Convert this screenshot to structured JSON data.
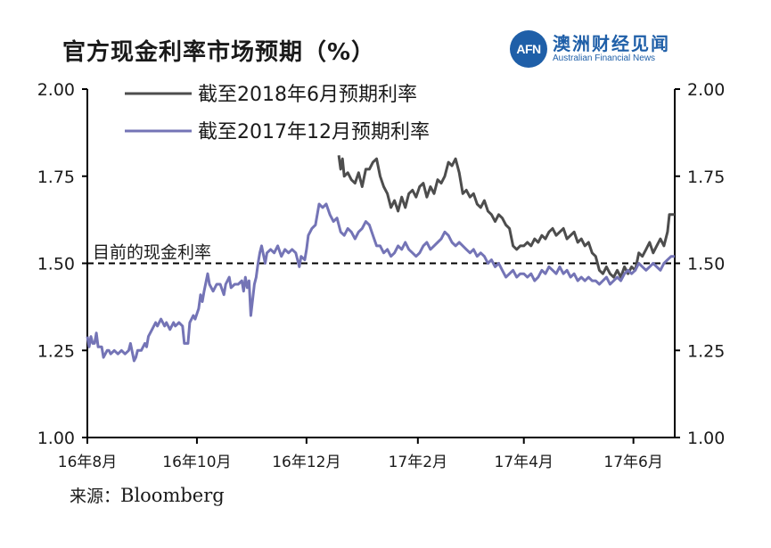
{
  "header": {
    "title": "官方现金利率市场预期（%）"
  },
  "logo": {
    "abbr": "AFN",
    "name_cn": "澳洲财经见闻",
    "name_en": "Australian Financial News"
  },
  "source": {
    "label": "来源：",
    "name": "Bloomberg"
  },
  "colors": {
    "series_2018": "#4d4d4d",
    "series_2017": "#7474b6",
    "axis": "#000000",
    "reference": "#000000"
  },
  "chart_data": {
    "type": "line",
    "ylim": [
      1.0,
      2.0
    ],
    "yticks": [
      "1.00",
      "1.25",
      "1.50",
      "1.75",
      "2.00"
    ],
    "xticks": [
      "16年8月",
      "16年10月",
      "16年12月",
      "17年2月",
      "17年4月",
      "17年6月"
    ],
    "x_unit": "days since 2016-08-01",
    "reference_line": {
      "value": 1.5,
      "label": "目前的现金利率"
    },
    "legend_position": "top-left",
    "series": [
      {
        "name": "截至2018年6月预期利率",
        "color": "#4d4d4d",
        "points": [
          [
            140,
            1.81
          ],
          [
            141,
            1.77
          ],
          [
            142,
            1.8
          ],
          [
            143,
            1.75
          ],
          [
            145,
            1.76
          ],
          [
            147,
            1.74
          ],
          [
            149,
            1.73
          ],
          [
            151,
            1.76
          ],
          [
            153,
            1.72
          ],
          [
            155,
            1.77
          ],
          [
            157,
            1.77
          ],
          [
            159,
            1.79
          ],
          [
            161,
            1.8
          ],
          [
            163,
            1.75
          ],
          [
            165,
            1.72
          ],
          [
            167,
            1.7
          ],
          [
            169,
            1.66
          ],
          [
            171,
            1.68
          ],
          [
            173,
            1.65
          ],
          [
            175,
            1.69
          ],
          [
            177,
            1.66
          ],
          [
            179,
            1.7
          ],
          [
            181,
            1.71
          ],
          [
            183,
            1.69
          ],
          [
            185,
            1.72
          ],
          [
            187,
            1.73
          ],
          [
            189,
            1.69
          ],
          [
            191,
            1.72
          ],
          [
            193,
            1.7
          ],
          [
            195,
            1.74
          ],
          [
            197,
            1.73
          ],
          [
            199,
            1.75
          ],
          [
            201,
            1.79
          ],
          [
            203,
            1.78
          ],
          [
            205,
            1.8
          ],
          [
            207,
            1.76
          ],
          [
            209,
            1.7
          ],
          [
            211,
            1.71
          ],
          [
            213,
            1.69
          ],
          [
            215,
            1.7
          ],
          [
            217,
            1.67
          ],
          [
            219,
            1.66
          ],
          [
            221,
            1.68
          ],
          [
            223,
            1.65
          ],
          [
            225,
            1.64
          ],
          [
            227,
            1.62
          ],
          [
            229,
            1.64
          ],
          [
            231,
            1.63
          ],
          [
            233,
            1.61
          ],
          [
            235,
            1.6
          ],
          [
            237,
            1.55
          ],
          [
            239,
            1.54
          ],
          [
            241,
            1.55
          ],
          [
            243,
            1.55
          ],
          [
            245,
            1.56
          ],
          [
            247,
            1.55
          ],
          [
            249,
            1.57
          ],
          [
            251,
            1.56
          ],
          [
            253,
            1.58
          ],
          [
            255,
            1.57
          ],
          [
            257,
            1.59
          ],
          [
            259,
            1.6
          ],
          [
            261,
            1.58
          ],
          [
            263,
            1.59
          ],
          [
            265,
            1.6
          ],
          [
            267,
            1.57
          ],
          [
            269,
            1.58
          ],
          [
            271,
            1.59
          ],
          [
            273,
            1.56
          ],
          [
            275,
            1.57
          ],
          [
            277,
            1.55
          ],
          [
            279,
            1.56
          ],
          [
            281,
            1.53
          ],
          [
            283,
            1.52
          ],
          [
            285,
            1.48
          ],
          [
            287,
            1.47
          ],
          [
            289,
            1.49
          ],
          [
            291,
            1.47
          ],
          [
            293,
            1.46
          ],
          [
            295,
            1.48
          ],
          [
            297,
            1.46
          ],
          [
            299,
            1.49
          ],
          [
            301,
            1.47
          ],
          [
            303,
            1.49
          ],
          [
            305,
            1.48
          ],
          [
            307,
            1.53
          ],
          [
            309,
            1.52
          ],
          [
            311,
            1.54
          ],
          [
            313,
            1.56
          ],
          [
            315,
            1.53
          ],
          [
            317,
            1.55
          ],
          [
            319,
            1.57
          ],
          [
            321,
            1.55
          ],
          [
            323,
            1.59
          ],
          [
            324,
            1.64
          ],
          [
            327,
            1.64
          ]
        ]
      },
      {
        "name": "截至2017年12月预期利率",
        "color": "#7474b6",
        "points": [
          [
            0,
            1.29
          ],
          [
            1,
            1.26
          ],
          [
            2,
            1.29
          ],
          [
            3,
            1.27
          ],
          [
            4,
            1.27
          ],
          [
            5,
            1.3
          ],
          [
            6,
            1.26
          ],
          [
            8,
            1.26
          ],
          [
            9,
            1.23
          ],
          [
            11,
            1.25
          ],
          [
            12,
            1.25
          ],
          [
            13,
            1.24
          ],
          [
            15,
            1.25
          ],
          [
            17,
            1.24
          ],
          [
            19,
            1.25
          ],
          [
            21,
            1.24
          ],
          [
            23,
            1.25
          ],
          [
            24,
            1.27
          ],
          [
            26,
            1.22
          ],
          [
            27,
            1.23
          ],
          [
            28,
            1.25
          ],
          [
            30,
            1.25
          ],
          [
            32,
            1.27
          ],
          [
            33,
            1.26
          ],
          [
            34,
            1.29
          ],
          [
            36,
            1.31
          ],
          [
            38,
            1.33
          ],
          [
            39,
            1.32
          ],
          [
            41,
            1.34
          ],
          [
            43,
            1.32
          ],
          [
            44,
            1.33
          ],
          [
            46,
            1.31
          ],
          [
            48,
            1.33
          ],
          [
            49,
            1.32
          ],
          [
            51,
            1.33
          ],
          [
            53,
            1.32
          ],
          [
            54,
            1.27
          ],
          [
            56,
            1.27
          ],
          [
            57,
            1.33
          ],
          [
            59,
            1.35
          ],
          [
            60,
            1.34
          ],
          [
            62,
            1.37
          ],
          [
            63,
            1.41
          ],
          [
            64,
            1.39
          ],
          [
            65,
            1.42
          ],
          [
            67,
            1.47
          ],
          [
            68,
            1.44
          ],
          [
            70,
            1.42
          ],
          [
            72,
            1.44
          ],
          [
            74,
            1.44
          ],
          [
            76,
            1.41
          ],
          [
            77,
            1.44
          ],
          [
            79,
            1.46
          ],
          [
            80,
            1.43
          ],
          [
            82,
            1.44
          ],
          [
            84,
            1.44
          ],
          [
            86,
            1.45
          ],
          [
            87,
            1.42
          ],
          [
            88,
            1.46
          ],
          [
            89,
            1.43
          ],
          [
            90,
            1.45
          ],
          [
            91,
            1.35
          ],
          [
            93,
            1.44
          ],
          [
            94,
            1.46
          ],
          [
            95,
            1.5
          ],
          [
            96,
            1.53
          ],
          [
            97,
            1.55
          ],
          [
            99,
            1.5
          ],
          [
            100,
            1.53
          ],
          [
            102,
            1.54
          ],
          [
            104,
            1.53
          ],
          [
            106,
            1.55
          ],
          [
            108,
            1.52
          ],
          [
            110,
            1.54
          ],
          [
            112,
            1.53
          ],
          [
            114,
            1.54
          ],
          [
            116,
            1.53
          ],
          [
            118,
            1.49
          ],
          [
            119,
            1.52
          ],
          [
            121,
            1.51
          ],
          [
            122,
            1.54
          ],
          [
            123,
            1.58
          ],
          [
            125,
            1.6
          ],
          [
            127,
            1.61
          ],
          [
            129,
            1.67
          ],
          [
            131,
            1.66
          ],
          [
            133,
            1.67
          ],
          [
            135,
            1.64
          ],
          [
            137,
            1.62
          ],
          [
            139,
            1.63
          ],
          [
            141,
            1.59
          ],
          [
            143,
            1.58
          ],
          [
            145,
            1.6
          ],
          [
            147,
            1.59
          ],
          [
            149,
            1.57
          ],
          [
            151,
            1.59
          ],
          [
            153,
            1.6
          ],
          [
            155,
            1.62
          ],
          [
            157,
            1.61
          ],
          [
            159,
            1.58
          ],
          [
            161,
            1.55
          ],
          [
            163,
            1.55
          ],
          [
            165,
            1.53
          ],
          [
            167,
            1.54
          ],
          [
            169,
            1.52
          ],
          [
            171,
            1.53
          ],
          [
            173,
            1.55
          ],
          [
            175,
            1.54
          ],
          [
            177,
            1.56
          ],
          [
            179,
            1.54
          ],
          [
            181,
            1.53
          ],
          [
            183,
            1.52
          ],
          [
            185,
            1.53
          ],
          [
            187,
            1.55
          ],
          [
            189,
            1.56
          ],
          [
            191,
            1.54
          ],
          [
            193,
            1.55
          ],
          [
            195,
            1.56
          ],
          [
            197,
            1.57
          ],
          [
            199,
            1.59
          ],
          [
            201,
            1.58
          ],
          [
            203,
            1.56
          ],
          [
            205,
            1.55
          ],
          [
            207,
            1.56
          ],
          [
            209,
            1.55
          ],
          [
            211,
            1.54
          ],
          [
            213,
            1.53
          ],
          [
            215,
            1.54
          ],
          [
            217,
            1.52
          ],
          [
            219,
            1.53
          ],
          [
            221,
            1.52
          ],
          [
            223,
            1.5
          ],
          [
            225,
            1.51
          ],
          [
            227,
            1.49
          ],
          [
            229,
            1.5
          ],
          [
            231,
            1.48
          ],
          [
            233,
            1.46
          ],
          [
            235,
            1.47
          ],
          [
            237,
            1.48
          ],
          [
            239,
            1.46
          ],
          [
            241,
            1.47
          ],
          [
            243,
            1.47
          ],
          [
            245,
            1.46
          ],
          [
            247,
            1.47
          ],
          [
            249,
            1.45
          ],
          [
            251,
            1.46
          ],
          [
            253,
            1.48
          ],
          [
            255,
            1.47
          ],
          [
            257,
            1.49
          ],
          [
            259,
            1.48
          ],
          [
            261,
            1.47
          ],
          [
            263,
            1.49
          ],
          [
            265,
            1.47
          ],
          [
            267,
            1.48
          ],
          [
            269,
            1.46
          ],
          [
            271,
            1.47
          ],
          [
            273,
            1.45
          ],
          [
            275,
            1.46
          ],
          [
            277,
            1.45
          ],
          [
            279,
            1.46
          ],
          [
            281,
            1.45
          ],
          [
            283,
            1.45
          ],
          [
            285,
            1.44
          ],
          [
            287,
            1.45
          ],
          [
            289,
            1.46
          ],
          [
            291,
            1.44
          ],
          [
            293,
            1.45
          ],
          [
            295,
            1.46
          ],
          [
            297,
            1.45
          ],
          [
            299,
            1.47
          ],
          [
            301,
            1.48
          ],
          [
            303,
            1.47
          ],
          [
            305,
            1.48
          ],
          [
            307,
            1.5
          ],
          [
            309,
            1.49
          ],
          [
            311,
            1.48
          ],
          [
            313,
            1.49
          ],
          [
            315,
            1.5
          ],
          [
            317,
            1.49
          ],
          [
            319,
            1.48
          ],
          [
            321,
            1.5
          ],
          [
            323,
            1.51
          ],
          [
            325,
            1.52
          ],
          [
            327,
            1.52
          ]
        ]
      }
    ]
  }
}
